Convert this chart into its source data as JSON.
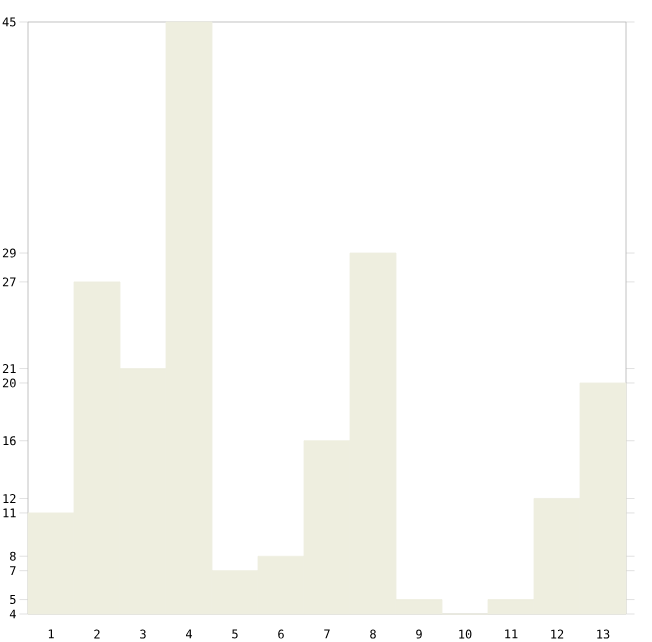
{
  "chart_data": {
    "type": "bar",
    "categories": [
      "1",
      "2",
      "3",
      "4",
      "5",
      "6",
      "7",
      "8",
      "9",
      "10",
      "11",
      "12",
      "13"
    ],
    "values": [
      11,
      27,
      21,
      45,
      7,
      8,
      16,
      29,
      5,
      4,
      5,
      12,
      20
    ],
    "color": "#eeeedf",
    "ylim": [
      4,
      45
    ],
    "yticks": [
      4,
      5,
      7,
      8,
      11,
      12,
      16,
      20,
      21,
      27,
      29,
      45
    ]
  }
}
